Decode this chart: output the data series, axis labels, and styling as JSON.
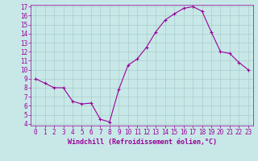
{
  "hours": [
    0,
    1,
    2,
    3,
    4,
    5,
    6,
    7,
    8,
    9,
    10,
    11,
    12,
    13,
    14,
    15,
    16,
    17,
    18,
    19,
    20,
    21,
    22,
    23
  ],
  "values": [
    9.0,
    8.5,
    8.0,
    8.0,
    6.5,
    6.2,
    6.3,
    4.5,
    4.2,
    7.8,
    10.5,
    11.2,
    12.5,
    14.2,
    15.5,
    16.2,
    16.8,
    17.0,
    16.5,
    14.2,
    12.0,
    11.8,
    10.8,
    10.0
  ],
  "line_color": "#990099",
  "marker": "+",
  "bg_color": "#c8e8e8",
  "grid_color": "#aacccc",
  "text_color": "#990099",
  "xlabel": "Windchill (Refroidissement éolien,°C)",
  "ylim": [
    4,
    17
  ],
  "xlim": [
    -0.5,
    23.5
  ],
  "yticks": [
    4,
    5,
    6,
    7,
    8,
    9,
    10,
    11,
    12,
    13,
    14,
    15,
    16,
    17
  ],
  "xticks": [
    0,
    1,
    2,
    3,
    4,
    5,
    6,
    7,
    8,
    9,
    10,
    11,
    12,
    13,
    14,
    15,
    16,
    17,
    18,
    19,
    20,
    21,
    22,
    23
  ],
  "tick_fontsize": 5.5,
  "xlabel_fontsize": 6.0
}
